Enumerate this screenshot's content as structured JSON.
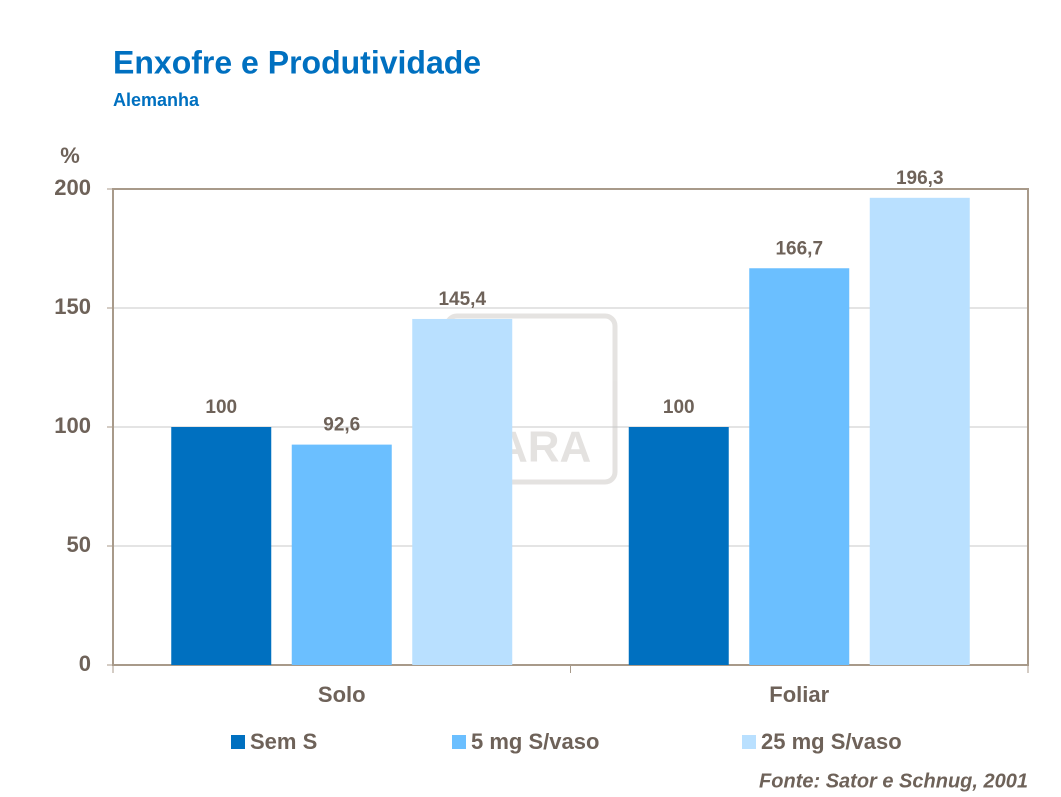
{
  "chart_data": {
    "type": "bar",
    "title": "Enxofre e Produtividade",
    "subtitle": "Alemanha",
    "y_label": "%",
    "source": "Fonte: Sator e Schnug, 2001",
    "watermark": "YARA",
    "categories": [
      "Solo",
      "Foliar"
    ],
    "series": [
      {
        "name": "Sem S",
        "color": "#0070c0",
        "values": [
          100,
          100
        ],
        "value_labels": [
          "100",
          "100"
        ]
      },
      {
        "name": "5 mg S/vaso",
        "color": "#6bbfff",
        "values": [
          92.6,
          166.7
        ],
        "value_labels": [
          "92,6",
          "166,7"
        ]
      },
      {
        "name": "25 mg S/vaso",
        "color": "#b9e0ff",
        "values": [
          145.4,
          196.3
        ],
        "value_labels": [
          "145,4",
          "196,3"
        ]
      }
    ],
    "ylim": [
      0,
      200
    ],
    "yticks": [
      0,
      50,
      100,
      150,
      200
    ],
    "grid": true
  }
}
